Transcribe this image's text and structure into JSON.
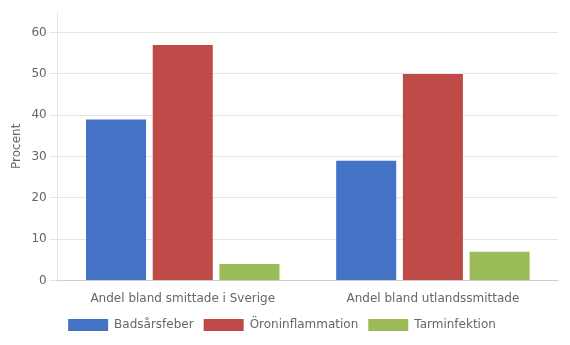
{
  "chart_data": {
    "type": "bar",
    "categories": [
      "Andel bland smittade i Sverige",
      "Andel bland utlandssmittade"
    ],
    "series": [
      {
        "name": "Badsårsfeber",
        "color": "#4472C4",
        "values": [
          39,
          29
        ]
      },
      {
        "name": "Öroninflammation",
        "color": "#BE4B48",
        "values": [
          57,
          50
        ]
      },
      {
        "name": "Tarminfektion",
        "color": "#9BBB59",
        "values": [
          4,
          7
        ]
      }
    ],
    "y_label": "Procent",
    "ylim": [
      0,
      65
    ],
    "yticks": [
      0,
      10,
      20,
      30,
      40,
      50,
      60
    ],
    "grid": true,
    "legend": "bottom"
  }
}
